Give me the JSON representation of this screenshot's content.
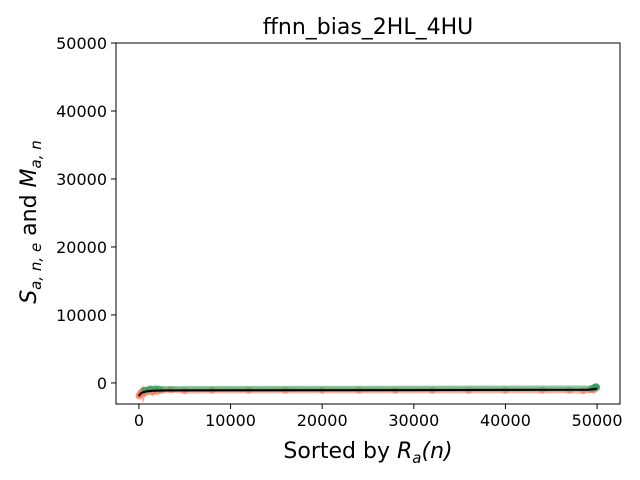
{
  "chart_data": {
    "type": "scatter",
    "title": "ffnn_bias_2HL_4HU",
    "xlabel": {
      "pre": "Sorted by ",
      "sym": "R",
      "sub": "a",
      "post": "(n)"
    },
    "ylabel": {
      "s_sym": "S",
      "s_sub": "a, n, e",
      "mid": " and ",
      "m_sym": "M",
      "m_sub": "a, n"
    },
    "xlim": [
      -2500,
      52500
    ],
    "ylim": [
      -3100,
      50000
    ],
    "x_ticks": [
      0,
      10000,
      20000,
      30000,
      40000,
      50000
    ],
    "y_ticks": [
      0,
      10000,
      20000,
      30000,
      40000,
      50000
    ],
    "grid": false,
    "series": [
      {
        "color": "#f4795f",
        "points": [
          [
            0,
            -1900
          ],
          [
            100,
            -1700
          ],
          [
            200,
            -1500
          ],
          [
            300,
            -1300
          ],
          [
            400,
            -1650
          ],
          [
            500,
            -1200
          ],
          [
            700,
            -1400
          ],
          [
            900,
            -1100
          ],
          [
            1100,
            -1250
          ],
          [
            1300,
            -1000
          ],
          [
            1500,
            -1350
          ],
          [
            1700,
            -1150
          ],
          [
            2000,
            -1250
          ],
          [
            2500,
            -1100
          ],
          [
            3500,
            -1000
          ],
          [
            5000,
            -1150
          ],
          [
            8000,
            -1100
          ],
          [
            12000,
            -1100
          ],
          [
            16000,
            -1100
          ],
          [
            20000,
            -1100
          ],
          [
            24000,
            -1100
          ],
          [
            28000,
            -1100
          ],
          [
            32000,
            -1100
          ],
          [
            36000,
            -1100
          ],
          [
            40000,
            -1100
          ],
          [
            44000,
            -1100
          ],
          [
            47000,
            -1100
          ],
          [
            48500,
            -1150
          ],
          [
            49200,
            -1000
          ],
          [
            49600,
            -1050
          ],
          [
            49800,
            -850
          ],
          [
            49950,
            -700
          ]
        ]
      },
      {
        "color": "#2e9e5b",
        "points": [
          [
            600,
            -1050
          ],
          [
            1200,
            -900
          ],
          [
            1800,
            -850
          ],
          [
            2200,
            -900
          ],
          [
            49500,
            -800
          ],
          [
            49700,
            -650
          ],
          [
            49850,
            -550
          ],
          [
            49950,
            -600
          ]
        ]
      },
      {
        "color": "#000000",
        "line": true,
        "points": [
          [
            0,
            -1950
          ],
          [
            150,
            -1600
          ],
          [
            400,
            -1400
          ],
          [
            800,
            -1250
          ],
          [
            1500,
            -1150
          ],
          [
            3000,
            -1100
          ],
          [
            10000,
            -1080
          ],
          [
            30000,
            -1060
          ],
          [
            49000,
            -1000
          ],
          [
            49800,
            -900
          ],
          [
            50000,
            -800
          ]
        ]
      }
    ]
  }
}
